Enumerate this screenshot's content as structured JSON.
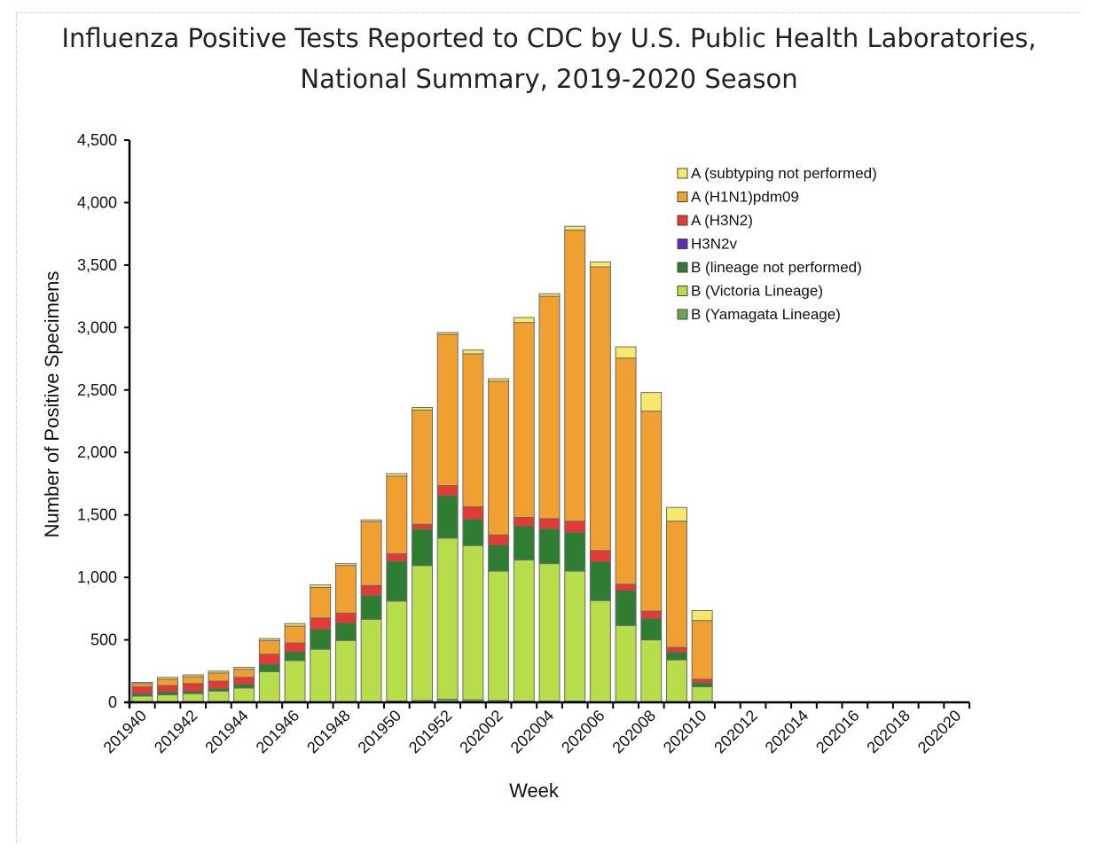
{
  "chart_data": {
    "type": "bar",
    "stacked": true,
    "title": "Influenza Positive Tests Reported to CDC by U.S. Public Health Laboratories,",
    "subtitle": "National Summary, 2019-2020 Season",
    "xlabel": "Week",
    "ylabel": "Number of Positive Specimens",
    "ylim": [
      0,
      4500
    ],
    "yticks": [
      "0",
      "500",
      "1,000",
      "1,500",
      "2,000",
      "2,500",
      "3,000",
      "3,500",
      "4,000",
      "4,500"
    ],
    "legend_position": "top-right",
    "categories": [
      "201940",
      "201941",
      "201942",
      "201943",
      "201944",
      "201945",
      "201946",
      "201947",
      "201948",
      "201949",
      "201950",
      "201951",
      "201952",
      "202001",
      "202002",
      "202003",
      "202004",
      "202005",
      "202006",
      "202007",
      "202008",
      "202009",
      "202010",
      "202011",
      "202012",
      "202013",
      "202014",
      "202015",
      "202016",
      "202017",
      "202018",
      "202019",
      "202020"
    ],
    "xtick_labels": [
      "201940",
      "201942",
      "201944",
      "201946",
      "201948",
      "201950",
      "201952",
      "202002",
      "202004",
      "202006",
      "202008",
      "202010",
      "202012",
      "202014",
      "202016",
      "202018",
      "202020"
    ],
    "series": [
      {
        "name": "B (Yamagata Lineage)",
        "color": "#6aa84f",
        "values": [
          5,
          5,
          5,
          5,
          5,
          5,
          5,
          5,
          5,
          5,
          10,
          15,
          25,
          20,
          15,
          10,
          10,
          10,
          5,
          5,
          5,
          5,
          5,
          0,
          0,
          0,
          0,
          0,
          0,
          0,
          0,
          0,
          0
        ]
      },
      {
        "name": "B (Victoria Lineage)",
        "color": "#b7dd4a",
        "values": [
          45,
          55,
          65,
          85,
          110,
          240,
          330,
          420,
          490,
          660,
          800,
          1080,
          1290,
          1235,
          1035,
          1130,
          1100,
          1040,
          810,
          610,
          495,
          335,
          120,
          0,
          0,
          0,
          0,
          0,
          0,
          0,
          0,
          0,
          0
        ]
      },
      {
        "name": "B (lineage not performed)",
        "color": "#2e7d32",
        "values": [
          20,
          25,
          20,
          20,
          30,
          60,
          70,
          160,
          140,
          190,
          320,
          290,
          340,
          210,
          210,
          270,
          280,
          310,
          310,
          280,
          170,
          60,
          30,
          0,
          0,
          0,
          0,
          0,
          0,
          0,
          0,
          0,
          0
        ]
      },
      {
        "name": "H3N2v",
        "color": "#5b2db8",
        "values": [
          0,
          0,
          0,
          0,
          0,
          0,
          0,
          0,
          0,
          0,
          0,
          0,
          0,
          0,
          0,
          0,
          0,
          0,
          0,
          0,
          0,
          0,
          0,
          0,
          0,
          0,
          0,
          0,
          0,
          0,
          0,
          0,
          0
        ]
      },
      {
        "name": "A (H3N2)",
        "color": "#e53935",
        "values": [
          55,
          50,
          60,
          60,
          55,
          80,
          70,
          90,
          80,
          80,
          60,
          40,
          80,
          100,
          80,
          70,
          80,
          90,
          90,
          50,
          60,
          40,
          30,
          0,
          0,
          0,
          0,
          0,
          0,
          0,
          0,
          0,
          0
        ]
      },
      {
        "name": "A (H1N1)pdm09",
        "color": "#f0a030",
        "values": [
          25,
          50,
          55,
          65,
          65,
          110,
          135,
          245,
          380,
          510,
          620,
          915,
          1210,
          1225,
          1230,
          1560,
          1780,
          2330,
          2270,
          1810,
          1600,
          1010,
          470,
          0,
          0,
          0,
          0,
          0,
          0,
          0,
          0,
          0,
          0
        ]
      },
      {
        "name": "A (subtyping not performed)",
        "color": "#f5e86a",
        "values": [
          10,
          15,
          15,
          15,
          15,
          15,
          20,
          20,
          15,
          15,
          20,
          20,
          15,
          30,
          20,
          40,
          20,
          30,
          40,
          90,
          150,
          110,
          80,
          0,
          0,
          0,
          0,
          0,
          0,
          0,
          0,
          0,
          0
        ]
      }
    ]
  }
}
